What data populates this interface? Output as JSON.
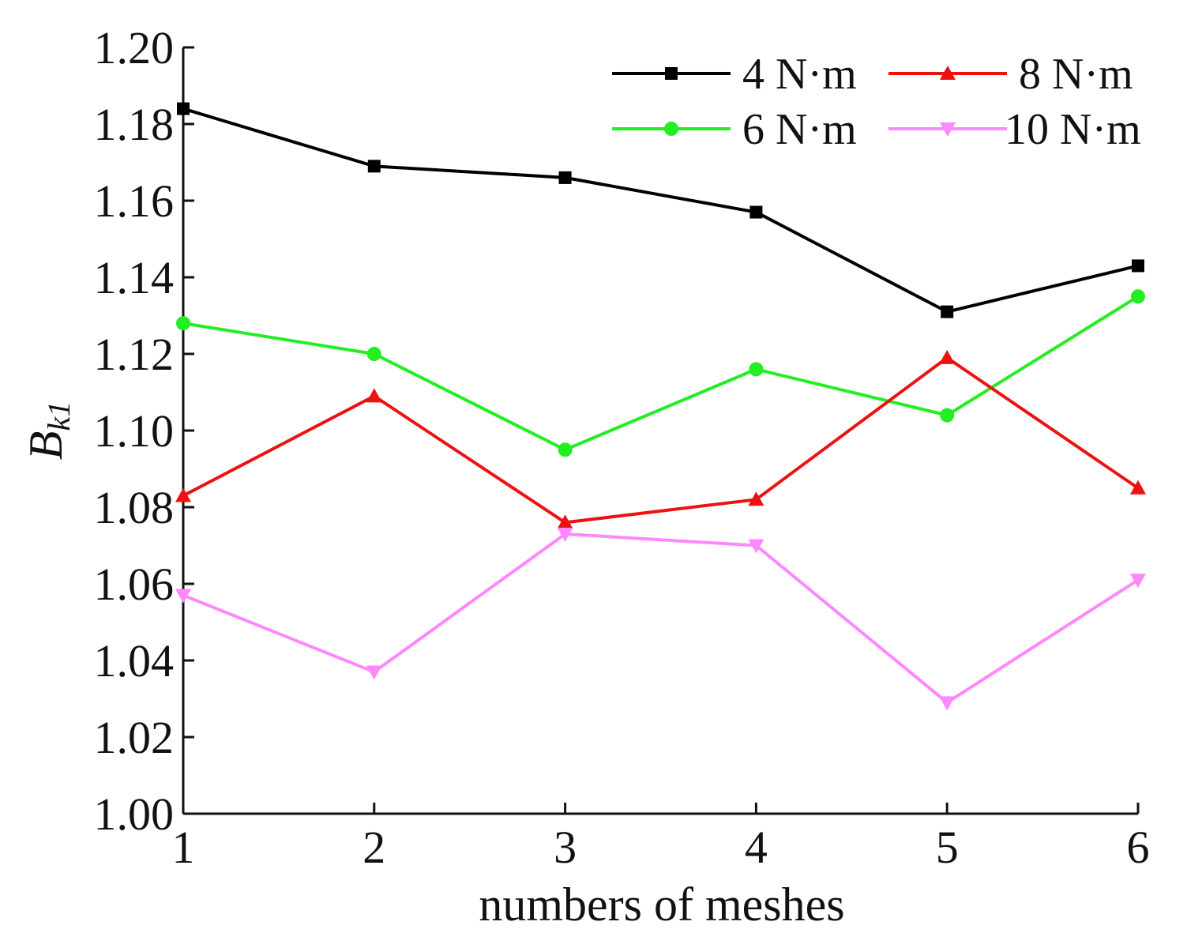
{
  "chart_data": {
    "type": "line",
    "title": "",
    "xlabel": "numbers of meshes",
    "ylabel_main": "B",
    "ylabel_sub": "k1",
    "x": [
      1,
      2,
      3,
      4,
      5,
      6
    ],
    "x_tick_labels": [
      "1",
      "2",
      "3",
      "4",
      "5",
      "6"
    ],
    "xlim": [
      1,
      6
    ],
    "ylim": [
      1.0,
      1.2
    ],
    "y_ticks": [
      1.0,
      1.02,
      1.04,
      1.06,
      1.08,
      1.1,
      1.12,
      1.14,
      1.16,
      1.18,
      1.2
    ],
    "y_tick_labels": [
      "1.00",
      "1.02",
      "1.04",
      "1.06",
      "1.08",
      "1.10",
      "1.12",
      "1.14",
      "1.16",
      "1.18",
      "1.20"
    ],
    "grid": false,
    "legend_position": "top-right",
    "series": [
      {
        "name": "4 N·m",
        "color": "#000000",
        "marker": "square",
        "values": [
          1.184,
          1.169,
          1.166,
          1.157,
          1.131,
          1.143
        ]
      },
      {
        "name": "6 N·m",
        "color": "#22ee22",
        "marker": "circle",
        "values": [
          1.128,
          1.12,
          1.095,
          1.116,
          1.104,
          1.135
        ]
      },
      {
        "name": "8 N·m",
        "color": "#ee1111",
        "marker": "triangle-up",
        "values": [
          1.083,
          1.109,
          1.076,
          1.082,
          1.119,
          1.085
        ]
      },
      {
        "name": "10 N·m",
        "color": "#ff88ff",
        "marker": "triangle-down",
        "values": [
          1.057,
          1.037,
          1.073,
          1.07,
          1.029,
          1.061
        ]
      }
    ]
  }
}
